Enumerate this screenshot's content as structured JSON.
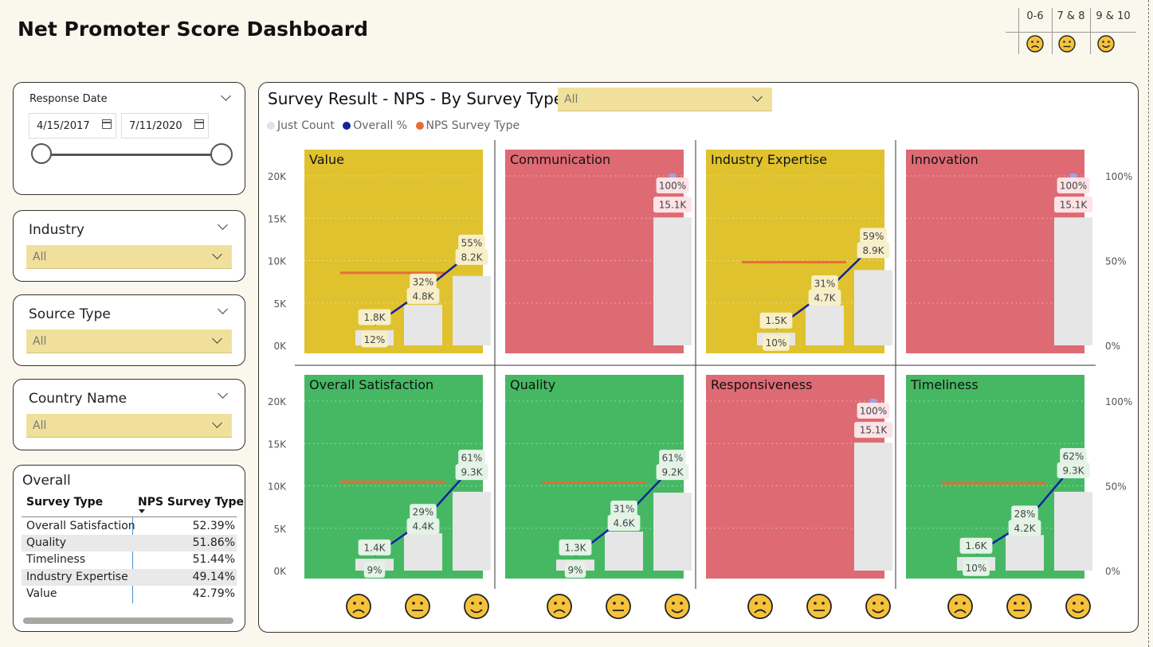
{
  "page": {
    "title": "Net Promoter Score Dashboard"
  },
  "score_legend": {
    "items": [
      {
        "label": "0-6",
        "icon": "sad-face-icon"
      },
      {
        "label": "7 & 8",
        "icon": "neutral-face-icon"
      },
      {
        "label": "9 & 10",
        "icon": "smile-face-icon"
      }
    ]
  },
  "filters": {
    "response_date": {
      "label": "Response Date",
      "start": "4/15/2017",
      "end": "7/11/2020"
    },
    "industry": {
      "label": "Industry",
      "value": "All"
    },
    "source_type": {
      "label": "Source Type",
      "value": "All"
    },
    "country_name": {
      "label": "Country Name",
      "value": "All"
    }
  },
  "overall": {
    "title": "Overall",
    "columns": [
      "Survey Type",
      "NPS Survey Type"
    ],
    "rows": [
      {
        "type": "Overall Satisfaction",
        "nps": "52.39%"
      },
      {
        "type": "Quality",
        "nps": "51.86%"
      },
      {
        "type": "Timeliness",
        "nps": "51.44%"
      },
      {
        "type": "Industry Expertise",
        "nps": "49.14%"
      },
      {
        "type": "Value",
        "nps": "42.79%"
      }
    ]
  },
  "survey_chart": {
    "title": "Survey Result - NPS - By Survey Type",
    "dropdown_value": "All",
    "legend": [
      {
        "label": "Just Count",
        "color": "#e1e1ea"
      },
      {
        "label": "Overall %",
        "color": "#12239e"
      },
      {
        "label": "NPS Survey Type",
        "color": "#e66c37"
      }
    ],
    "left_ticks": [
      "20K",
      "15K",
      "10K",
      "5K",
      "0K"
    ],
    "right_ticks": [
      "100%",
      "50%",
      "0%"
    ]
  },
  "chart_data": {
    "type": "bar",
    "layout": "small-multiples",
    "categories": [
      "0-6",
      "7 & 8",
      "9 & 10"
    ],
    "ylim_count": [
      0,
      20000
    ],
    "ylim_percent": [
      0,
      100
    ],
    "series_names": [
      "Just Count",
      "Overall %",
      "NPS Survey Type"
    ],
    "colors": {
      "good": "#46b864",
      "mid": "#dfc22e",
      "bad": "#de6a73",
      "count_bar": "#e6e6e6",
      "overall_line": "#12239e",
      "nps_line": "#e66c37"
    },
    "panels": [
      {
        "name": "Value",
        "status": "mid",
        "counts": [
          1800,
          4800,
          8200
        ],
        "count_labels": [
          "1.8K",
          "4.8K",
          "8.2K"
        ],
        "percents": [
          12,
          32,
          55
        ],
        "percent_labels": [
          "12%",
          "32%",
          "55%"
        ],
        "nps": 42.79
      },
      {
        "name": "Communication",
        "status": "bad",
        "counts": [
          null,
          null,
          15100
        ],
        "count_labels": [
          "",
          "",
          "15.1K"
        ],
        "percents": [
          null,
          null,
          100
        ],
        "percent_labels": [
          "",
          "",
          "100%"
        ],
        "nps": null
      },
      {
        "name": "Industry Expertise",
        "status": "mid",
        "counts": [
          1500,
          4700,
          8900
        ],
        "count_labels": [
          "1.5K",
          "4.7K",
          "8.9K"
        ],
        "percents": [
          10,
          31,
          59
        ],
        "percent_labels": [
          "10%",
          "31%",
          "59%"
        ],
        "nps": 49.14
      },
      {
        "name": "Innovation",
        "status": "bad",
        "counts": [
          null,
          null,
          15100
        ],
        "count_labels": [
          "",
          "",
          "15.1K"
        ],
        "percents": [
          null,
          null,
          100
        ],
        "percent_labels": [
          "",
          "",
          "100%"
        ],
        "nps": null
      },
      {
        "name": "Overall Satisfaction",
        "status": "good",
        "counts": [
          1400,
          4400,
          9300
        ],
        "count_labels": [
          "1.4K",
          "4.4K",
          "9.3K"
        ],
        "percents": [
          9,
          29,
          61
        ],
        "percent_labels": [
          "9%",
          "29%",
          "61%"
        ],
        "nps": 52.39
      },
      {
        "name": "Quality",
        "status": "good",
        "counts": [
          1300,
          4600,
          9200
        ],
        "count_labels": [
          "1.3K",
          "4.6K",
          "9.2K"
        ],
        "percents": [
          9,
          31,
          61
        ],
        "percent_labels": [
          "9%",
          "31%",
          "61%"
        ],
        "nps": 51.86
      },
      {
        "name": "Responsiveness",
        "status": "bad",
        "counts": [
          null,
          null,
          15100
        ],
        "count_labels": [
          "",
          "",
          "15.1K"
        ],
        "percents": [
          null,
          null,
          100
        ],
        "percent_labels": [
          "",
          "",
          "100%"
        ],
        "nps": null
      },
      {
        "name": "Timeliness",
        "status": "good",
        "counts": [
          1600,
          4200,
          9300
        ],
        "count_labels": [
          "1.6K",
          "4.2K",
          "9.3K"
        ],
        "percents": [
          10,
          28,
          62
        ],
        "percent_labels": [
          "10%",
          "28%",
          "62%"
        ],
        "nps": 51.44
      }
    ]
  }
}
